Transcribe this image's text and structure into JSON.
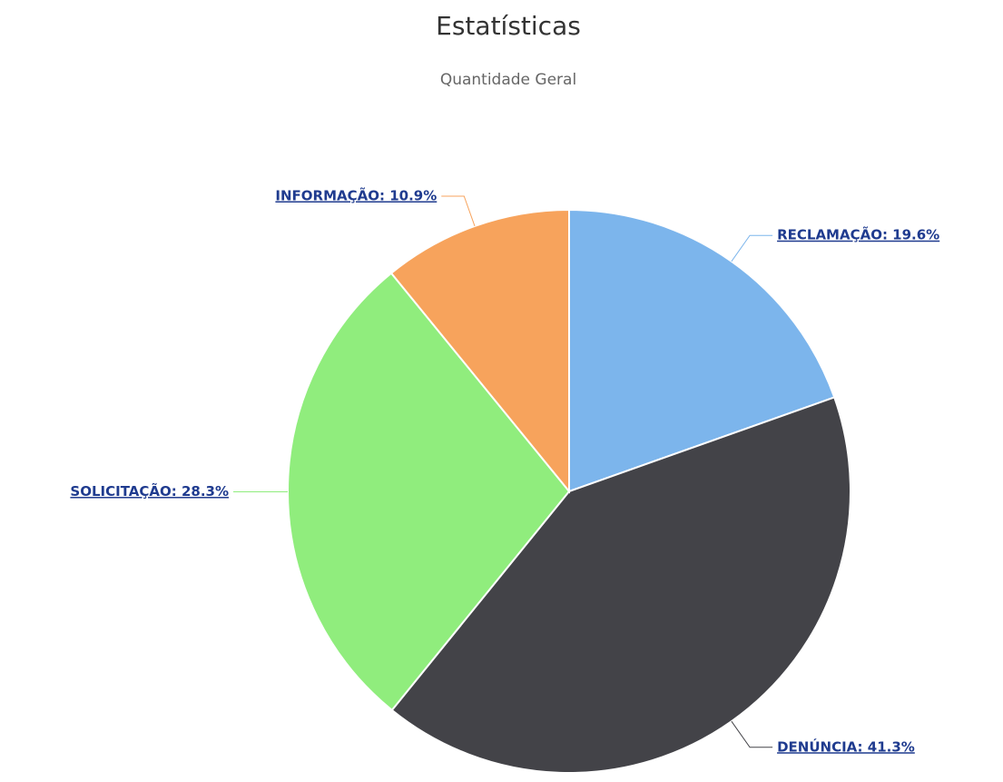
{
  "chart_data": {
    "type": "pie",
    "title": "Estatísticas",
    "subtitle": "Quantidade Geral",
    "values": [
      19.6,
      41.3,
      28.3,
      10.9
    ],
    "value_labels": [
      "RECLAMAÇÃO: 19.6%",
      "DENÚNCIA: 41.3%",
      "SOLICITAÇÃO: 28.3%",
      "INFORMAÇÃO: 10.9%"
    ],
    "colors": [
      "#7cb5ec",
      "#434348",
      "#90ed7d",
      "#f7a35c"
    ]
  }
}
